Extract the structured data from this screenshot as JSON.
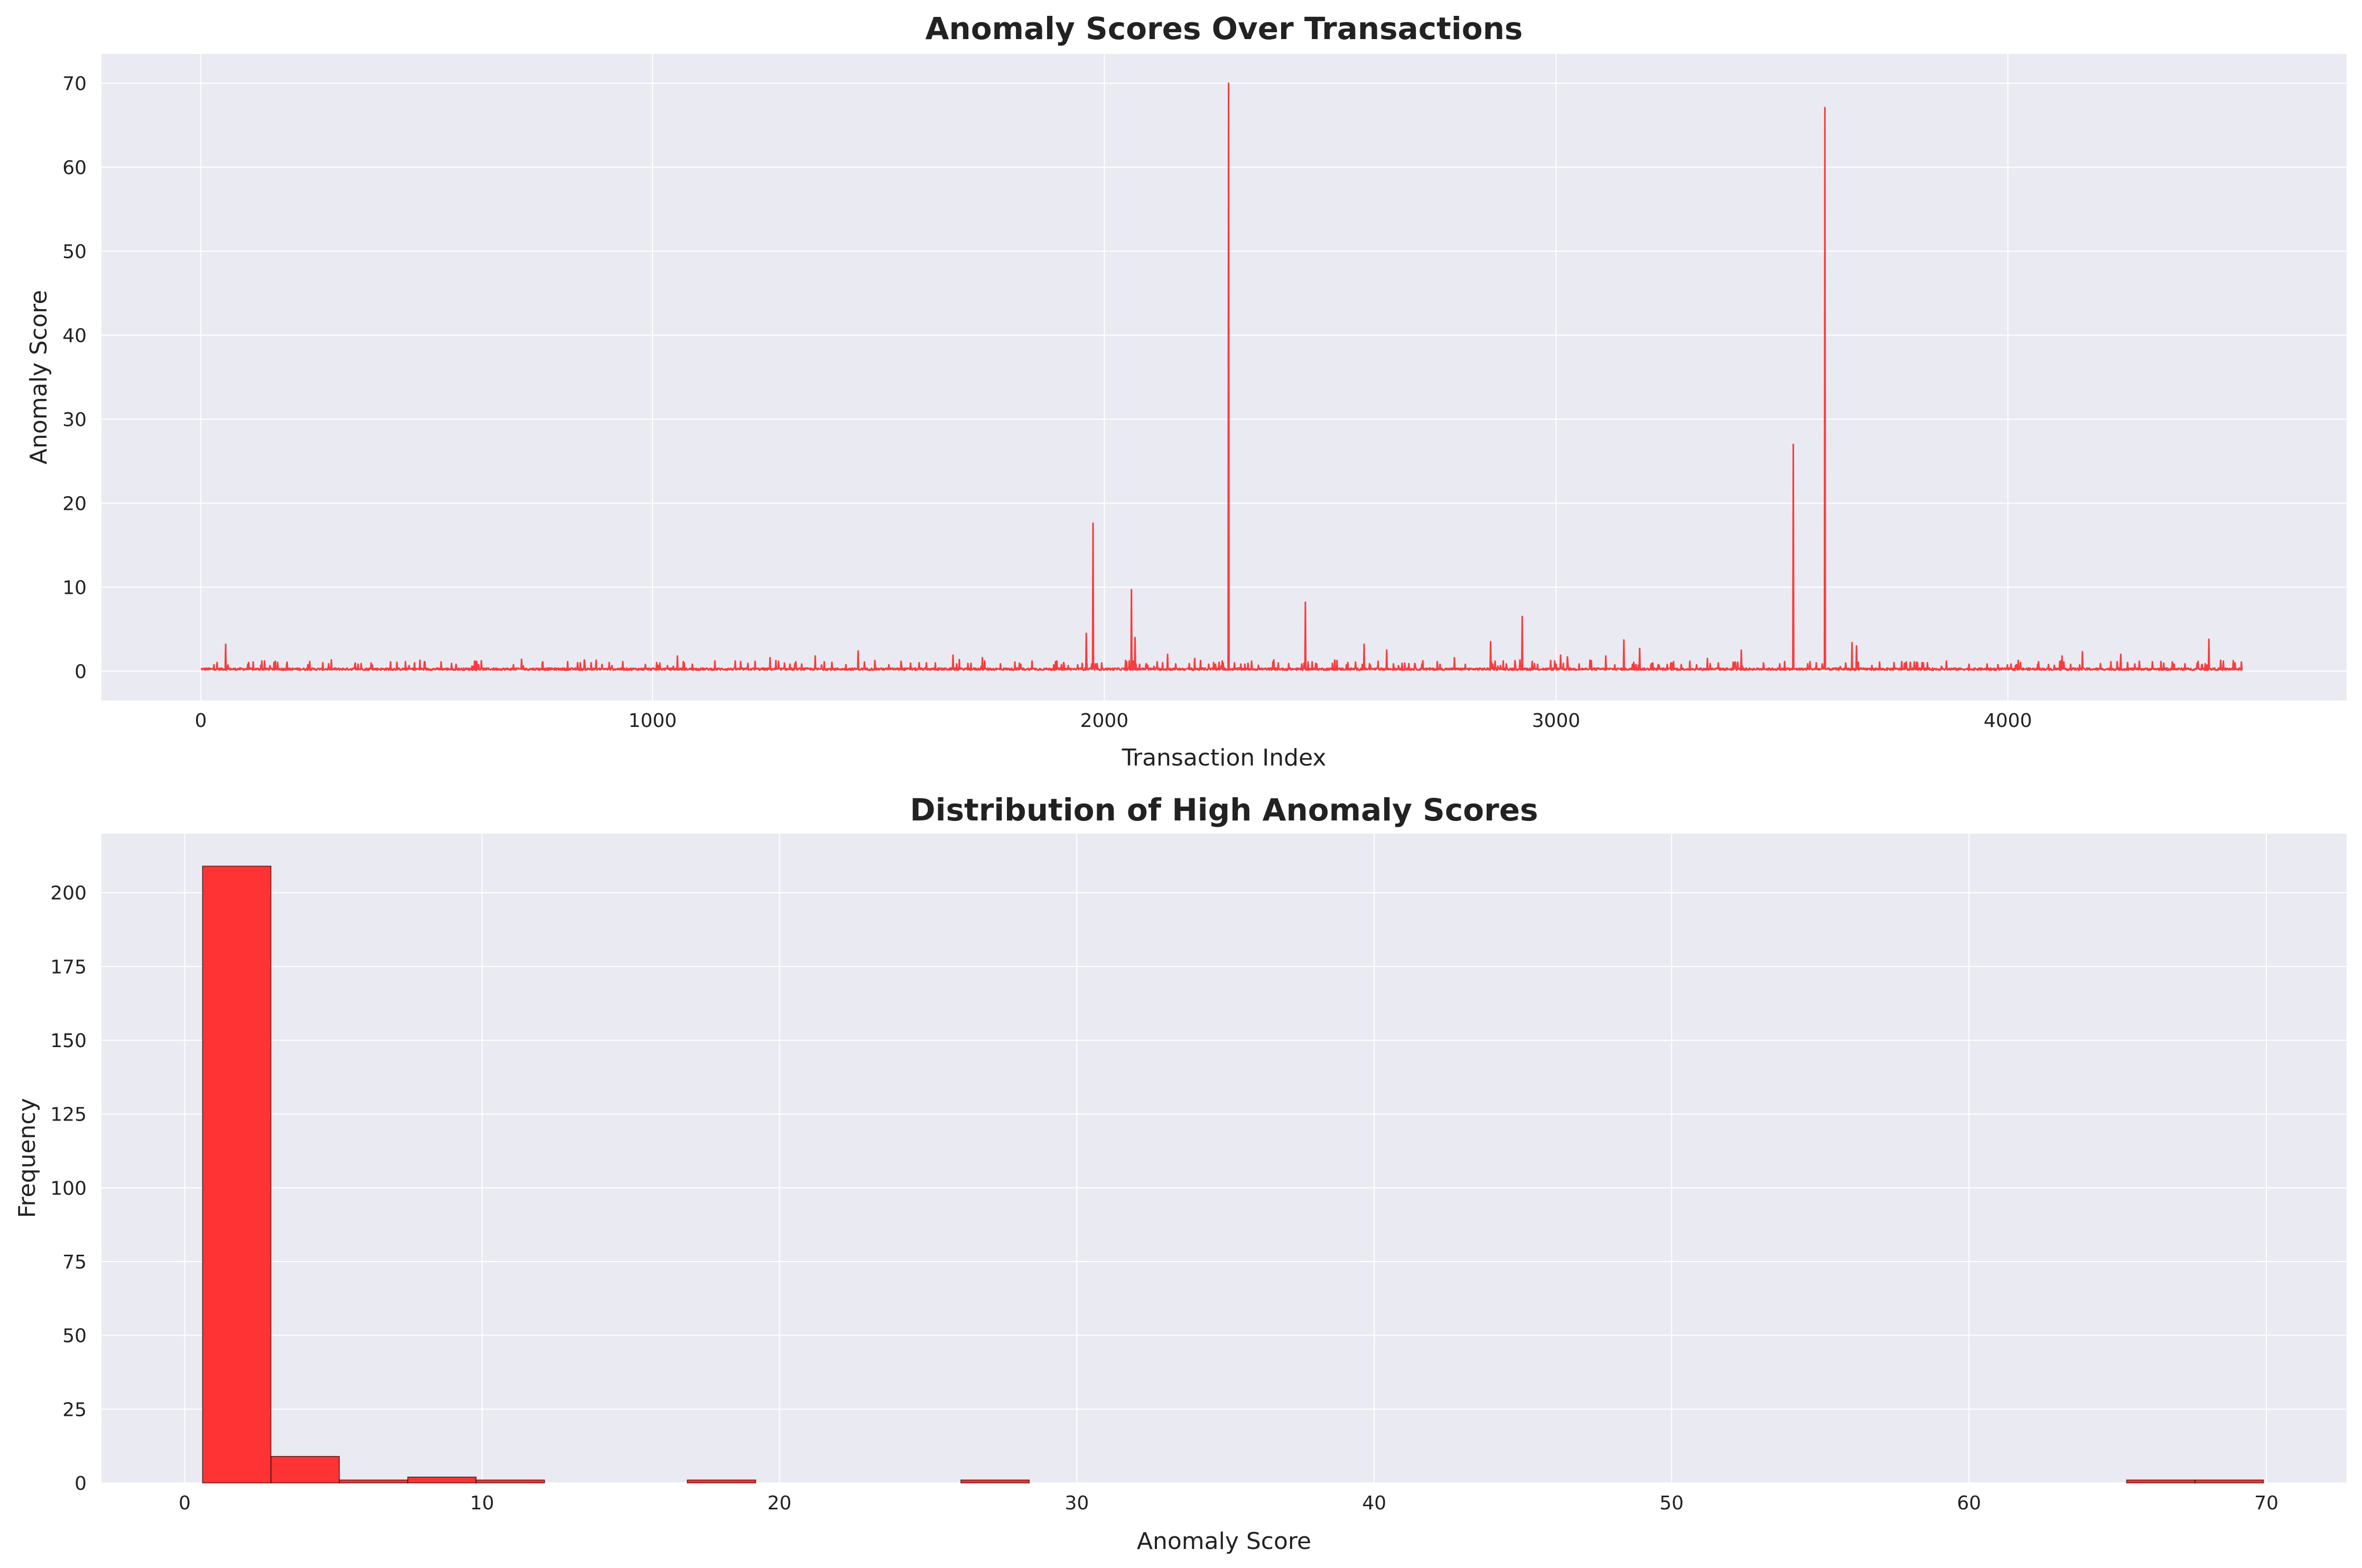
{
  "chart_data": [
    {
      "type": "line",
      "title": "Anomaly Scores Over Transactions",
      "xlabel": "Transaction Index",
      "ylabel": "Anomaly Score",
      "xlim": [
        -220,
        4750
      ],
      "ylim": [
        -3.5,
        73.5
      ],
      "xticks": [
        0,
        1000,
        2000,
        3000,
        4000
      ],
      "yticks": [
        0,
        10,
        20,
        30,
        40,
        50,
        60,
        70
      ],
      "grid": true,
      "line_color": "#ff0000",
      "baseline": 0.3,
      "n_points": 4520,
      "spikes": [
        {
          "x": 55,
          "y": 3.2
        },
        {
          "x": 135,
          "y": 1.2
        },
        {
          "x": 190,
          "y": 0.8
        },
        {
          "x": 270,
          "y": 1.0
        },
        {
          "x": 355,
          "y": 0.9
        },
        {
          "x": 420,
          "y": 1.1
        },
        {
          "x": 485,
          "y": 1.3
        },
        {
          "x": 710,
          "y": 1.4
        },
        {
          "x": 840,
          "y": 1.0
        },
        {
          "x": 875,
          "y": 1.3
        },
        {
          "x": 1055,
          "y": 1.8
        },
        {
          "x": 1260,
          "y": 1.6
        },
        {
          "x": 1360,
          "y": 1.8
        },
        {
          "x": 1455,
          "y": 2.4
        },
        {
          "x": 1665,
          "y": 1.9
        },
        {
          "x": 1730,
          "y": 1.6
        },
        {
          "x": 1895,
          "y": 1.2
        },
        {
          "x": 1960,
          "y": 4.5
        },
        {
          "x": 1975,
          "y": 17.6
        },
        {
          "x": 2060,
          "y": 9.7
        },
        {
          "x": 2068,
          "y": 4.0
        },
        {
          "x": 2140,
          "y": 2.0
        },
        {
          "x": 2200,
          "y": 1.5
        },
        {
          "x": 2275,
          "y": 70.0
        },
        {
          "x": 2445,
          "y": 8.2
        },
        {
          "x": 2575,
          "y": 3.2
        },
        {
          "x": 2625,
          "y": 2.5
        },
        {
          "x": 2775,
          "y": 1.6
        },
        {
          "x": 2855,
          "y": 3.5
        },
        {
          "x": 2925,
          "y": 6.5
        },
        {
          "x": 3010,
          "y": 1.9
        },
        {
          "x": 3025,
          "y": 1.7
        },
        {
          "x": 3110,
          "y": 1.8
        },
        {
          "x": 3150,
          "y": 3.7
        },
        {
          "x": 3185,
          "y": 2.7
        },
        {
          "x": 3335,
          "y": 1.5
        },
        {
          "x": 3410,
          "y": 2.5
        },
        {
          "x": 3525,
          "y": 27.0
        },
        {
          "x": 3595,
          "y": 67.1
        },
        {
          "x": 3655,
          "y": 3.4
        },
        {
          "x": 3665,
          "y": 3.0
        },
        {
          "x": 3775,
          "y": 1.1
        },
        {
          "x": 4120,
          "y": 1.8
        },
        {
          "x": 4165,
          "y": 2.3
        },
        {
          "x": 4250,
          "y": 2.0
        },
        {
          "x": 4445,
          "y": 3.8
        }
      ]
    },
    {
      "type": "bar",
      "title": "Distribution of High Anomaly Scores",
      "xlabel": "Anomaly Score",
      "ylabel": "Frequency",
      "xlim": [
        -2.8,
        72.7
      ],
      "ylim": [
        0,
        220
      ],
      "xticks": [
        0,
        10,
        20,
        30,
        40,
        50,
        60,
        70
      ],
      "yticks": [
        0,
        25,
        50,
        75,
        100,
        125,
        150,
        175,
        200
      ],
      "grid": true,
      "bar_color": "#ff3333",
      "edge_color": "#000000",
      "bins": [
        {
          "x0": 0.6,
          "x1": 2.9,
          "count": 209
        },
        {
          "x0": 2.9,
          "x1": 5.2,
          "count": 9
        },
        {
          "x0": 5.2,
          "x1": 7.5,
          "count": 1
        },
        {
          "x0": 7.5,
          "x1": 9.8,
          "count": 2
        },
        {
          "x0": 9.8,
          "x1": 12.1,
          "count": 1
        },
        {
          "x0": 16.9,
          "x1": 19.2,
          "count": 1
        },
        {
          "x0": 26.1,
          "x1": 28.4,
          "count": 1
        },
        {
          "x0": 65.3,
          "x1": 67.6,
          "count": 1
        },
        {
          "x0": 67.6,
          "x1": 69.9,
          "count": 1
        }
      ]
    }
  ]
}
